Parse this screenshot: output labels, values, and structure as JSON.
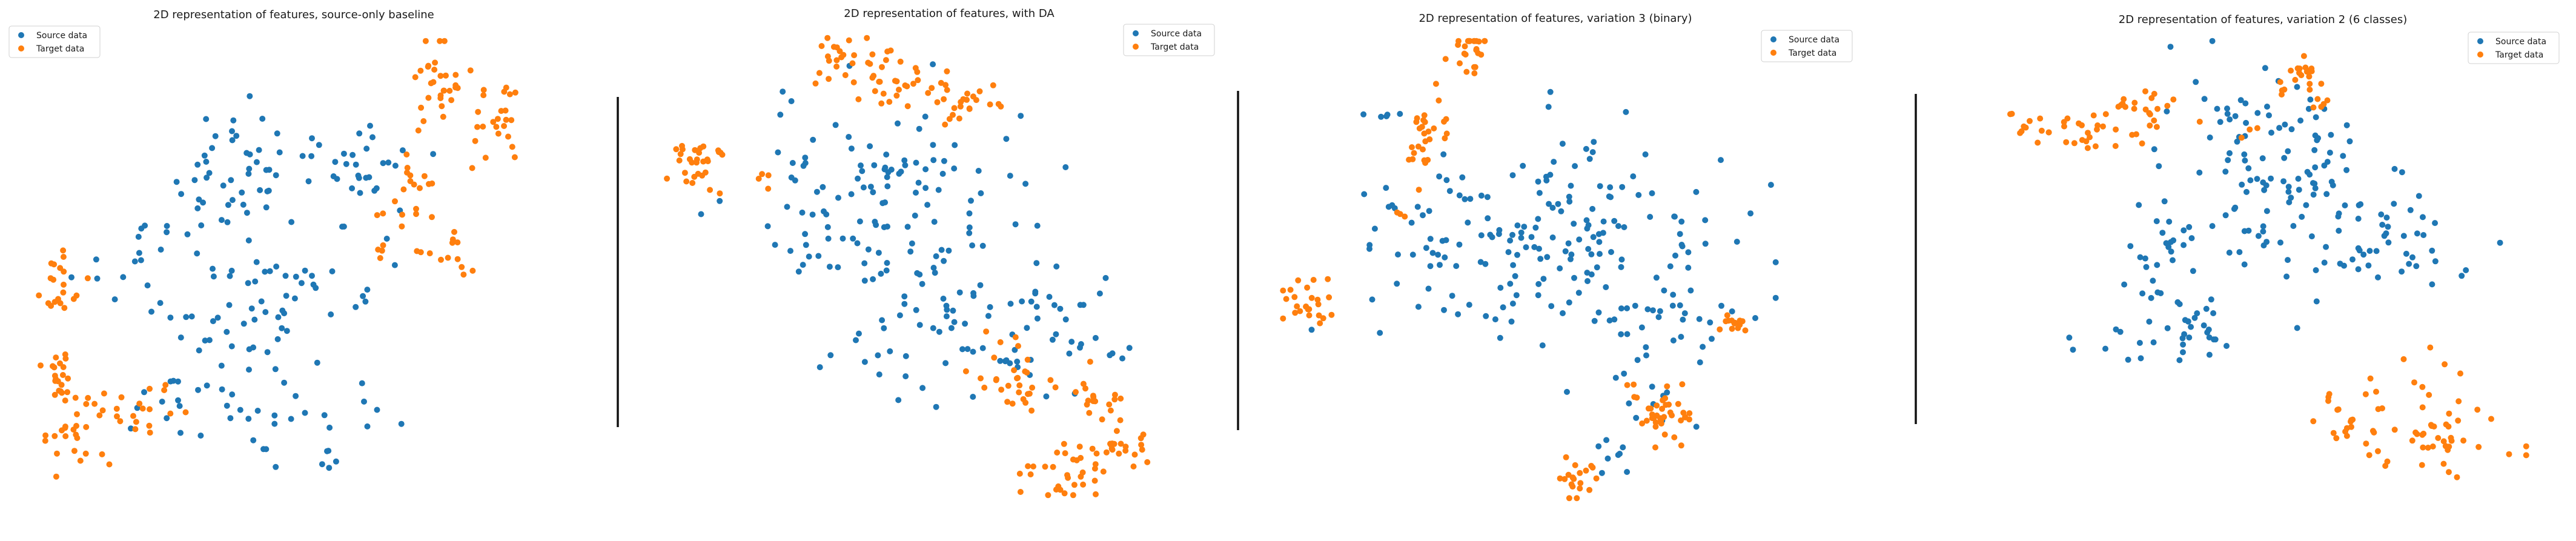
{
  "colors": {
    "source": "#1f77b4",
    "target": "#ff7f0e"
  },
  "legend": {
    "source_label": "Source data",
    "target_label": "Target data"
  },
  "chart_data": [
    {
      "type": "scatter",
      "title": "2D representation of features, source-only baseline",
      "xlabel": "",
      "ylabel": "",
      "axes_visible": false,
      "grid": false,
      "legend_position": "top-left",
      "series": [
        {
          "name": "Source data",
          "color": "#1f77b4",
          "clusters": [
            {
              "cx": 0.38,
              "cy": 0.7,
              "sx": 0.07,
              "sy": 0.07,
              "n": 45
            },
            {
              "cx": 0.61,
              "cy": 0.74,
              "sx": 0.06,
              "sy": 0.05,
              "n": 30
            },
            {
              "cx": 0.23,
              "cy": 0.53,
              "sx": 0.07,
              "sy": 0.05,
              "n": 20
            },
            {
              "cx": 0.54,
              "cy": 0.47,
              "sx": 0.08,
              "sy": 0.06,
              "n": 30
            },
            {
              "cx": 0.4,
              "cy": 0.36,
              "sx": 0.07,
              "sy": 0.09,
              "n": 40
            },
            {
              "cx": 0.3,
              "cy": 0.2,
              "sx": 0.06,
              "sy": 0.04,
              "n": 20
            },
            {
              "cx": 0.6,
              "cy": 0.18,
              "sx": 0.05,
              "sy": 0.03,
              "n": 8
            },
            {
              "cx": 0.55,
              "cy": 0.08,
              "sx": 0.01,
              "sy": 0.015,
              "n": 5
            }
          ]
        },
        {
          "name": "Target data",
          "color": "#ff7f0e",
          "clusters": [
            {
              "cx": 0.76,
              "cy": 0.89,
              "sx": 0.03,
              "sy": 0.05,
              "n": 30
            },
            {
              "cx": 0.86,
              "cy": 0.82,
              "sx": 0.03,
              "sy": 0.05,
              "n": 25
            },
            {
              "cx": 0.72,
              "cy": 0.68,
              "sx": 0.02,
              "sy": 0.03,
              "n": 10
            },
            {
              "cx": 0.7,
              "cy": 0.58,
              "sx": 0.03,
              "sy": 0.03,
              "n": 15
            },
            {
              "cx": 0.79,
              "cy": 0.52,
              "sx": 0.015,
              "sy": 0.05,
              "n": 10
            },
            {
              "cx": 0.07,
              "cy": 0.47,
              "sx": 0.025,
              "sy": 0.04,
              "n": 20
            },
            {
              "cx": 0.07,
              "cy": 0.28,
              "sx": 0.025,
              "sy": 0.03,
              "n": 20
            },
            {
              "cx": 0.09,
              "cy": 0.16,
              "sx": 0.035,
              "sy": 0.04,
              "n": 25
            },
            {
              "cx": 0.21,
              "cy": 0.19,
              "sx": 0.04,
              "sy": 0.03,
              "n": 20
            }
          ]
        }
      ]
    },
    {
      "type": "scatter",
      "title": "2D representation of features, with DA",
      "xlabel": "",
      "ylabel": "",
      "axes_visible": false,
      "grid": false,
      "legend_position": "top-right",
      "series": [
        {
          "name": "Source data",
          "color": "#1f77b4",
          "clusters": [
            {
              "cx": 0.42,
              "cy": 0.64,
              "sx": 0.14,
              "sy": 0.11,
              "n": 110
            },
            {
              "cx": 0.6,
              "cy": 0.38,
              "sx": 0.12,
              "sy": 0.1,
              "n": 80
            },
            {
              "cx": 0.75,
              "cy": 0.35,
              "sx": 0.05,
              "sy": 0.05,
              "n": 15
            }
          ]
        },
        {
          "name": "Target data",
          "color": "#ff7f0e",
          "clusters": [
            {
              "cx": 0.08,
              "cy": 0.73,
              "sx": 0.025,
              "sy": 0.035,
              "n": 30
            },
            {
              "cx": 0.34,
              "cy": 0.95,
              "sx": 0.03,
              "sy": 0.03,
              "n": 20
            },
            {
              "cx": 0.44,
              "cy": 0.9,
              "sx": 0.04,
              "sy": 0.03,
              "n": 30
            },
            {
              "cx": 0.57,
              "cy": 0.86,
              "sx": 0.03,
              "sy": 0.03,
              "n": 25
            },
            {
              "cx": 0.66,
              "cy": 0.25,
              "sx": 0.04,
              "sy": 0.05,
              "n": 30
            },
            {
              "cx": 0.8,
              "cy": 0.2,
              "sx": 0.03,
              "sy": 0.03,
              "n": 20
            },
            {
              "cx": 0.86,
              "cy": 0.1,
              "sx": 0.03,
              "sy": 0.02,
              "n": 20
            },
            {
              "cx": 0.75,
              "cy": 0.05,
              "sx": 0.04,
              "sy": 0.03,
              "n": 30
            },
            {
              "cx": 0.2,
              "cy": 0.68,
              "sx": 0.01,
              "sy": 0.01,
              "n": 4
            }
          ]
        }
      ]
    },
    {
      "type": "scatter",
      "title": "2D representation of features, variation 3 (binary)",
      "xlabel": "",
      "ylabel": "",
      "axes_visible": false,
      "grid": false,
      "legend_position": "top-right",
      "series": [
        {
          "name": "Source data",
          "color": "#1f77b4",
          "clusters": [
            {
              "cx": 0.5,
              "cy": 0.55,
              "sx": 0.17,
              "sy": 0.11,
              "n": 180
            },
            {
              "cx": 0.76,
              "cy": 0.38,
              "sx": 0.07,
              "sy": 0.1,
              "n": 40
            },
            {
              "cx": 0.68,
              "cy": 0.1,
              "sx": 0.04,
              "sy": 0.03,
              "n": 8
            },
            {
              "cx": 0.2,
              "cy": 0.84,
              "sx": 0.02,
              "sy": 0.02,
              "n": 5
            }
          ]
        },
        {
          "name": "Target data",
          "color": "#ff7f0e",
          "clusters": [
            {
              "cx": 0.38,
              "cy": 0.96,
              "sx": 0.02,
              "sy": 0.04,
              "n": 25
            },
            {
              "cx": 0.3,
              "cy": 0.8,
              "sx": 0.02,
              "sy": 0.04,
              "n": 20
            },
            {
              "cx": 0.28,
              "cy": 0.74,
              "sx": 0.02,
              "sy": 0.03,
              "n": 8
            },
            {
              "cx": 0.06,
              "cy": 0.42,
              "sx": 0.03,
              "sy": 0.03,
              "n": 25
            },
            {
              "cx": 0.91,
              "cy": 0.38,
              "sx": 0.015,
              "sy": 0.015,
              "n": 14
            },
            {
              "cx": 0.76,
              "cy": 0.2,
              "sx": 0.04,
              "sy": 0.04,
              "n": 40
            },
            {
              "cx": 0.59,
              "cy": 0.05,
              "sx": 0.02,
              "sy": 0.03,
              "n": 20
            },
            {
              "cx": 0.24,
              "cy": 0.62,
              "sx": 0.01,
              "sy": 0.01,
              "n": 3
            }
          ]
        }
      ]
    },
    {
      "type": "scatter",
      "title": "2D representation of features, variation 2 (6 classes)",
      "xlabel": "",
      "ylabel": "",
      "axes_visible": false,
      "grid": false,
      "legend_position": "top-right",
      "series": [
        {
          "name": "Source data",
          "color": "#1f77b4",
          "clusters": [
            {
              "cx": 0.55,
              "cy": 0.68,
              "sx": 0.1,
              "sy": 0.12,
              "n": 110
            },
            {
              "cx": 0.74,
              "cy": 0.56,
              "sx": 0.07,
              "sy": 0.06,
              "n": 40
            },
            {
              "cx": 0.33,
              "cy": 0.55,
              "sx": 0.04,
              "sy": 0.06,
              "n": 25
            },
            {
              "cx": 0.41,
              "cy": 0.38,
              "sx": 0.03,
              "sy": 0.05,
              "n": 20
            },
            {
              "cx": 0.3,
              "cy": 0.36,
              "sx": 0.05,
              "sy": 0.04,
              "n": 15
            },
            {
              "cx": 0.49,
              "cy": 0.82,
              "sx": 0.03,
              "sy": 0.03,
              "n": 8
            }
          ]
        },
        {
          "name": "Target data",
          "color": "#ff7f0e",
          "clusters": [
            {
              "cx": 0.17,
              "cy": 0.8,
              "sx": 0.08,
              "sy": 0.02,
              "n": 35
            },
            {
              "cx": 0.31,
              "cy": 0.85,
              "sx": 0.03,
              "sy": 0.02,
              "n": 20
            },
            {
              "cx": 0.58,
              "cy": 0.92,
              "sx": 0.025,
              "sy": 0.02,
              "n": 20
            },
            {
              "cx": 0.62,
              "cy": 0.86,
              "sx": 0.01,
              "sy": 0.01,
              "n": 5
            },
            {
              "cx": 0.82,
              "cy": 0.15,
              "sx": 0.06,
              "sy": 0.07,
              "n": 50
            },
            {
              "cx": 0.68,
              "cy": 0.18,
              "sx": 0.04,
              "sy": 0.03,
              "n": 20
            },
            {
              "cx": 0.5,
              "cy": 0.8,
              "sx": 0.01,
              "sy": 0.01,
              "n": 3
            }
          ]
        }
      ]
    }
  ]
}
